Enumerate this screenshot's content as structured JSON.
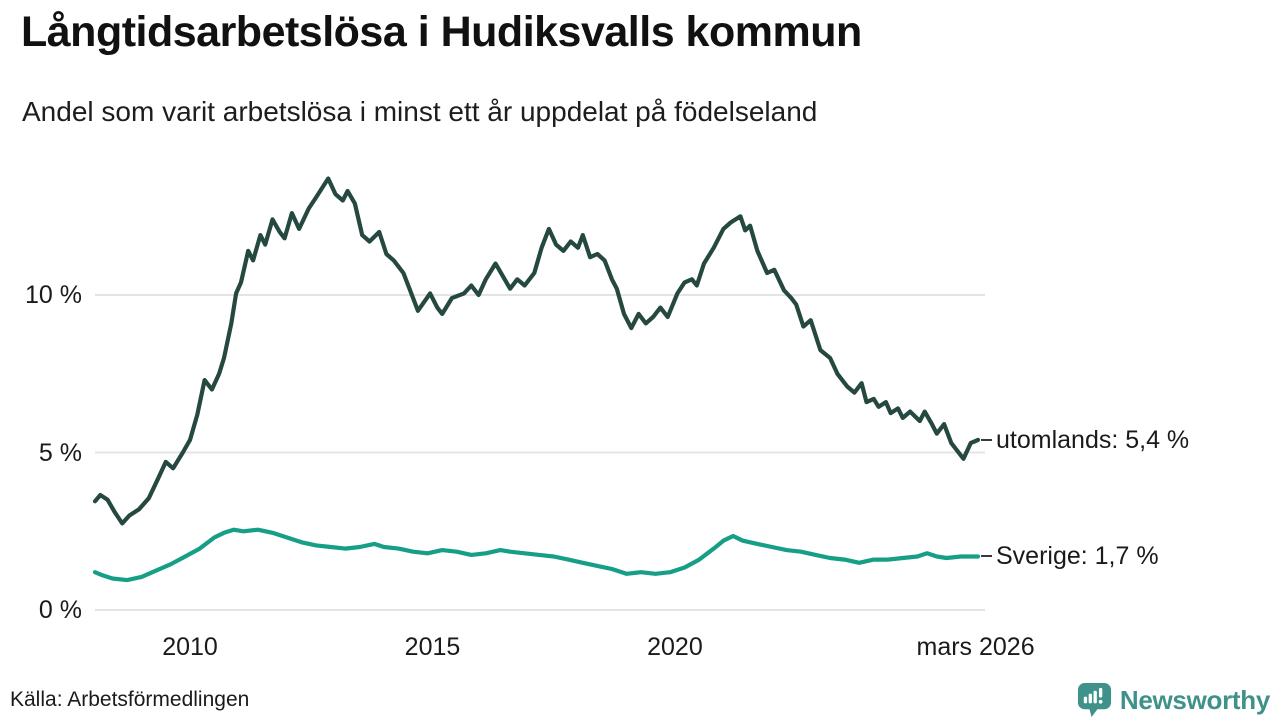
{
  "header": {
    "title": "Långtidsarbetslösa i Hudiksvalls kommun",
    "subtitle": "Andel som varit arbetslösa i minst ett år uppdelat på födelseland"
  },
  "footer": {
    "source": "Källa: Arbetsförmedlingen",
    "brand": "Newsworthy"
  },
  "colors": {
    "utomlands_line": "#254840",
    "sverige_line": "#179E87",
    "brand_teal": "#3E9289",
    "grid": "#E4E4E4",
    "text": "#1A1A1A"
  },
  "chart_data": {
    "type": "line",
    "title": "Långtidsarbetslösa i Hudiksvalls kommun",
    "subtitle": "Andel som varit arbetslösa i minst ett år uppdelat på födelseland",
    "xlabel": "",
    "ylabel": "",
    "xlim": [
      2008.04,
      2026.25
    ],
    "ylim": [
      0,
      14.2
    ],
    "grid": "horizontal",
    "legend_position": "right-end-labels",
    "x_ticks": [
      {
        "value": 2010,
        "label": "2010"
      },
      {
        "value": 2015,
        "label": "2015"
      },
      {
        "value": 2020,
        "label": "2020"
      },
      {
        "value": 2026.2,
        "label": "mars 2026"
      }
    ],
    "y_ticks": [
      {
        "value": 0,
        "label": "0 %"
      },
      {
        "value": 5,
        "label": "5 %"
      },
      {
        "value": 10,
        "label": "10 %"
      }
    ],
    "series": [
      {
        "name": "utomlands",
        "end_label": "utomlands: 5,4 %",
        "end_value": "5,4 %",
        "color": "#254840",
        "points": [
          [
            2008.04,
            3.45
          ],
          [
            2008.15,
            3.65
          ],
          [
            2008.3,
            3.5
          ],
          [
            2008.45,
            3.1
          ],
          [
            2008.6,
            2.75
          ],
          [
            2008.75,
            3.0
          ],
          [
            2008.95,
            3.2
          ],
          [
            2009.15,
            3.55
          ],
          [
            2009.35,
            4.2
          ],
          [
            2009.5,
            4.7
          ],
          [
            2009.65,
            4.5
          ],
          [
            2009.85,
            5.0
          ],
          [
            2010.0,
            5.4
          ],
          [
            2010.15,
            6.2
          ],
          [
            2010.3,
            7.3
          ],
          [
            2010.45,
            7.0
          ],
          [
            2010.6,
            7.5
          ],
          [
            2010.7,
            8.0
          ],
          [
            2010.85,
            9.1
          ],
          [
            2010.95,
            10.05
          ],
          [
            2011.05,
            10.4
          ],
          [
            2011.2,
            11.4
          ],
          [
            2011.3,
            11.1
          ],
          [
            2011.45,
            11.9
          ],
          [
            2011.55,
            11.6
          ],
          [
            2011.7,
            12.4
          ],
          [
            2011.85,
            12.0
          ],
          [
            2011.95,
            11.8
          ],
          [
            2012.1,
            12.6
          ],
          [
            2012.25,
            12.1
          ],
          [
            2012.45,
            12.75
          ],
          [
            2012.6,
            13.1
          ],
          [
            2012.85,
            13.7
          ],
          [
            2013.0,
            13.2
          ],
          [
            2013.15,
            13.0
          ],
          [
            2013.25,
            13.3
          ],
          [
            2013.4,
            12.9
          ],
          [
            2013.55,
            11.9
          ],
          [
            2013.7,
            11.7
          ],
          [
            2013.9,
            12.0
          ],
          [
            2014.05,
            11.3
          ],
          [
            2014.2,
            11.1
          ],
          [
            2014.4,
            10.7
          ],
          [
            2014.55,
            10.1
          ],
          [
            2014.7,
            9.5
          ],
          [
            2014.95,
            10.05
          ],
          [
            2015.1,
            9.6
          ],
          [
            2015.2,
            9.4
          ],
          [
            2015.4,
            9.9
          ],
          [
            2015.65,
            10.05
          ],
          [
            2015.8,
            10.3
          ],
          [
            2015.95,
            10.0
          ],
          [
            2016.1,
            10.5
          ],
          [
            2016.3,
            11.0
          ],
          [
            2016.45,
            10.6
          ],
          [
            2016.6,
            10.2
          ],
          [
            2016.75,
            10.5
          ],
          [
            2016.9,
            10.3
          ],
          [
            2017.1,
            10.7
          ],
          [
            2017.25,
            11.5
          ],
          [
            2017.4,
            12.1
          ],
          [
            2017.55,
            11.6
          ],
          [
            2017.7,
            11.4
          ],
          [
            2017.85,
            11.7
          ],
          [
            2018.0,
            11.5
          ],
          [
            2018.1,
            11.9
          ],
          [
            2018.25,
            11.2
          ],
          [
            2018.4,
            11.3
          ],
          [
            2018.55,
            11.1
          ],
          [
            2018.7,
            10.5
          ],
          [
            2018.8,
            10.2
          ],
          [
            2018.95,
            9.4
          ],
          [
            2019.1,
            8.95
          ],
          [
            2019.25,
            9.4
          ],
          [
            2019.4,
            9.1
          ],
          [
            2019.55,
            9.3
          ],
          [
            2019.7,
            9.6
          ],
          [
            2019.85,
            9.3
          ],
          [
            2020.05,
            10.05
          ],
          [
            2020.2,
            10.4
          ],
          [
            2020.35,
            10.5
          ],
          [
            2020.45,
            10.3
          ],
          [
            2020.6,
            11.0
          ],
          [
            2020.8,
            11.5
          ],
          [
            2021.0,
            12.1
          ],
          [
            2021.15,
            12.3
          ],
          [
            2021.35,
            12.5
          ],
          [
            2021.45,
            12.05
          ],
          [
            2021.55,
            12.2
          ],
          [
            2021.7,
            11.4
          ],
          [
            2021.9,
            10.7
          ],
          [
            2022.05,
            10.8
          ],
          [
            2022.25,
            10.15
          ],
          [
            2022.4,
            9.9
          ],
          [
            2022.5,
            9.7
          ],
          [
            2022.65,
            9.0
          ],
          [
            2022.8,
            9.2
          ],
          [
            2023.0,
            8.25
          ],
          [
            2023.2,
            8.0
          ],
          [
            2023.35,
            7.5
          ],
          [
            2023.55,
            7.1
          ],
          [
            2023.7,
            6.9
          ],
          [
            2023.85,
            7.2
          ],
          [
            2023.95,
            6.6
          ],
          [
            2024.1,
            6.7
          ],
          [
            2024.2,
            6.45
          ],
          [
            2024.35,
            6.6
          ],
          [
            2024.45,
            6.25
          ],
          [
            2024.6,
            6.4
          ],
          [
            2024.7,
            6.1
          ],
          [
            2024.85,
            6.3
          ],
          [
            2025.05,
            6.0
          ],
          [
            2025.15,
            6.3
          ],
          [
            2025.3,
            5.9
          ],
          [
            2025.4,
            5.6
          ],
          [
            2025.55,
            5.9
          ],
          [
            2025.7,
            5.3
          ],
          [
            2025.85,
            5.0
          ],
          [
            2025.95,
            4.8
          ],
          [
            2026.1,
            5.3
          ],
          [
            2026.25,
            5.4
          ]
        ]
      },
      {
        "name": "Sverige",
        "end_label": "Sverige: 1,7 %",
        "end_value": "1,7 %",
        "color": "#179E87",
        "points": [
          [
            2008.04,
            1.2
          ],
          [
            2008.2,
            1.1
          ],
          [
            2008.4,
            1.0
          ],
          [
            2008.7,
            0.95
          ],
          [
            2009.0,
            1.05
          ],
          [
            2009.3,
            1.25
          ],
          [
            2009.6,
            1.45
          ],
          [
            2009.9,
            1.7
          ],
          [
            2010.2,
            1.95
          ],
          [
            2010.5,
            2.3
          ],
          [
            2010.7,
            2.45
          ],
          [
            2010.9,
            2.55
          ],
          [
            2011.1,
            2.5
          ],
          [
            2011.4,
            2.55
          ],
          [
            2011.7,
            2.45
          ],
          [
            2012.0,
            2.3
          ],
          [
            2012.3,
            2.15
          ],
          [
            2012.6,
            2.05
          ],
          [
            2012.9,
            2.0
          ],
          [
            2013.2,
            1.95
          ],
          [
            2013.5,
            2.0
          ],
          [
            2013.8,
            2.1
          ],
          [
            2014.0,
            2.0
          ],
          [
            2014.3,
            1.95
          ],
          [
            2014.6,
            1.85
          ],
          [
            2014.9,
            1.8
          ],
          [
            2015.2,
            1.9
          ],
          [
            2015.5,
            1.85
          ],
          [
            2015.8,
            1.75
          ],
          [
            2016.1,
            1.8
          ],
          [
            2016.4,
            1.9
          ],
          [
            2016.6,
            1.85
          ],
          [
            2016.9,
            1.8
          ],
          [
            2017.2,
            1.75
          ],
          [
            2017.5,
            1.7
          ],
          [
            2017.8,
            1.6
          ],
          [
            2018.1,
            1.5
          ],
          [
            2018.4,
            1.4
          ],
          [
            2018.7,
            1.3
          ],
          [
            2019.0,
            1.15
          ],
          [
            2019.3,
            1.2
          ],
          [
            2019.6,
            1.15
          ],
          [
            2019.9,
            1.2
          ],
          [
            2020.2,
            1.35
          ],
          [
            2020.5,
            1.6
          ],
          [
            2020.8,
            1.95
          ],
          [
            2021.0,
            2.2
          ],
          [
            2021.2,
            2.35
          ],
          [
            2021.4,
            2.2
          ],
          [
            2021.7,
            2.1
          ],
          [
            2022.0,
            2.0
          ],
          [
            2022.3,
            1.9
          ],
          [
            2022.6,
            1.85
          ],
          [
            2022.9,
            1.75
          ],
          [
            2023.2,
            1.65
          ],
          [
            2023.5,
            1.6
          ],
          [
            2023.8,
            1.5
          ],
          [
            2024.1,
            1.6
          ],
          [
            2024.4,
            1.6
          ],
          [
            2024.7,
            1.65
          ],
          [
            2025.0,
            1.7
          ],
          [
            2025.2,
            1.8
          ],
          [
            2025.4,
            1.7
          ],
          [
            2025.6,
            1.65
          ],
          [
            2025.9,
            1.7
          ],
          [
            2026.25,
            1.7
          ]
        ]
      }
    ]
  }
}
